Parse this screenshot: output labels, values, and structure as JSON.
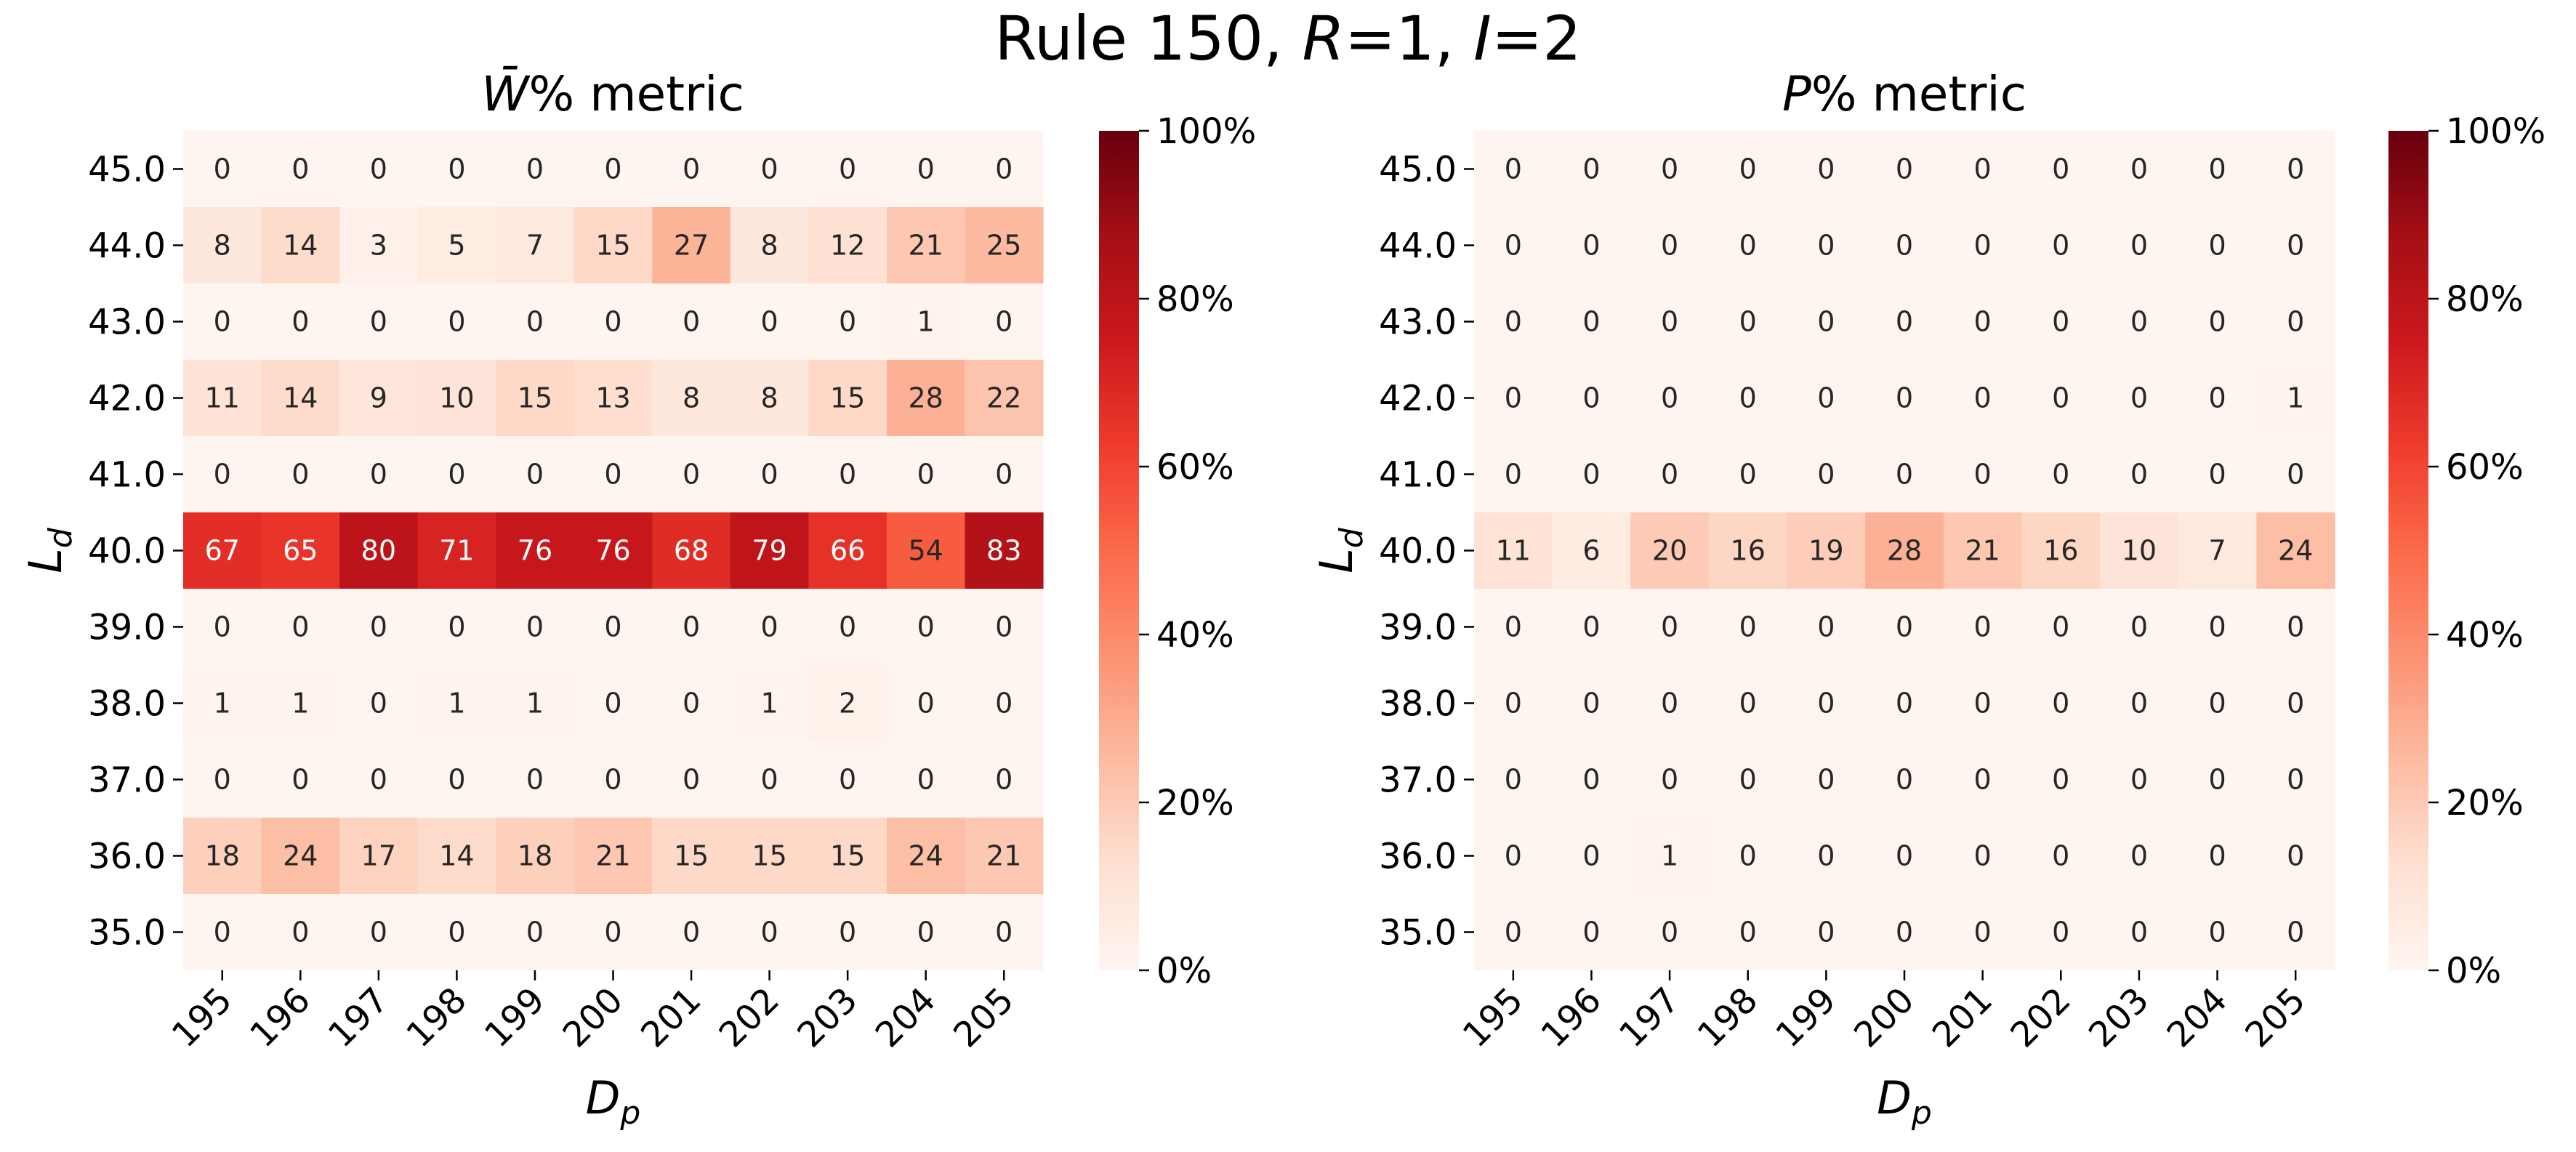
{
  "figure": {
    "title": {
      "prefix": "Rule 150, ",
      "r_symbol": "R",
      "r_value": "=1, ",
      "i_symbol": "I",
      "i_value": "=2"
    }
  },
  "chart_data": [
    {
      "type": "heatmap",
      "title": {
        "symbol": "W̄",
        "suffix": "% metric"
      },
      "xlabel": {
        "main": "D",
        "sub": "p"
      },
      "ylabel": {
        "main": "L",
        "sub": "d"
      },
      "x": [
        "195",
        "196",
        "197",
        "198",
        "199",
        "200",
        "201",
        "202",
        "203",
        "204",
        "205"
      ],
      "y": [
        "45.0",
        "44.0",
        "43.0",
        "42.0",
        "41.0",
        "40.0",
        "39.0",
        "38.0",
        "37.0",
        "36.0",
        "35.0"
      ],
      "values": [
        [
          0,
          0,
          0,
          0,
          0,
          0,
          0,
          0,
          0,
          0,
          0
        ],
        [
          8,
          14,
          3,
          5,
          7,
          15,
          27,
          8,
          12,
          21,
          25
        ],
        [
          0,
          0,
          0,
          0,
          0,
          0,
          0,
          0,
          0,
          1,
          0
        ],
        [
          11,
          14,
          9,
          10,
          15,
          13,
          8,
          8,
          15,
          28,
          22
        ],
        [
          0,
          0,
          0,
          0,
          0,
          0,
          0,
          0,
          0,
          0,
          0
        ],
        [
          67,
          65,
          80,
          71,
          76,
          76,
          68,
          79,
          66,
          54,
          83
        ],
        [
          0,
          0,
          0,
          0,
          0,
          0,
          0,
          0,
          0,
          0,
          0
        ],
        [
          1,
          1,
          0,
          1,
          1,
          0,
          0,
          1,
          2,
          0,
          0
        ],
        [
          0,
          0,
          0,
          0,
          0,
          0,
          0,
          0,
          0,
          0,
          0
        ],
        [
          18,
          24,
          17,
          14,
          18,
          21,
          15,
          15,
          15,
          24,
          21
        ],
        [
          0,
          0,
          0,
          0,
          0,
          0,
          0,
          0,
          0,
          0,
          0
        ]
      ],
      "vmin": 0,
      "vmax": 100,
      "colormap": "Reds",
      "colorbar_ticks": [
        "0%",
        "20%",
        "40%",
        "60%",
        "80%",
        "100%"
      ]
    },
    {
      "type": "heatmap",
      "title": {
        "symbol": "P",
        "suffix": "% metric"
      },
      "xlabel": {
        "main": "D",
        "sub": "p"
      },
      "ylabel": {
        "main": "L",
        "sub": "d"
      },
      "x": [
        "195",
        "196",
        "197",
        "198",
        "199",
        "200",
        "201",
        "202",
        "203",
        "204",
        "205"
      ],
      "y": [
        "45.0",
        "44.0",
        "43.0",
        "42.0",
        "41.0",
        "40.0",
        "39.0",
        "38.0",
        "37.0",
        "36.0",
        "35.0"
      ],
      "values": [
        [
          0,
          0,
          0,
          0,
          0,
          0,
          0,
          0,
          0,
          0,
          0
        ],
        [
          0,
          0,
          0,
          0,
          0,
          0,
          0,
          0,
          0,
          0,
          0
        ],
        [
          0,
          0,
          0,
          0,
          0,
          0,
          0,
          0,
          0,
          0,
          0
        ],
        [
          0,
          0,
          0,
          0,
          0,
          0,
          0,
          0,
          0,
          0,
          1
        ],
        [
          0,
          0,
          0,
          0,
          0,
          0,
          0,
          0,
          0,
          0,
          0
        ],
        [
          11,
          6,
          20,
          16,
          19,
          28,
          21,
          16,
          10,
          7,
          24
        ],
        [
          0,
          0,
          0,
          0,
          0,
          0,
          0,
          0,
          0,
          0,
          0
        ],
        [
          0,
          0,
          0,
          0,
          0,
          0,
          0,
          0,
          0,
          0,
          0
        ],
        [
          0,
          0,
          0,
          0,
          0,
          0,
          0,
          0,
          0,
          0,
          0
        ],
        [
          0,
          0,
          1,
          0,
          0,
          0,
          0,
          0,
          0,
          0,
          0
        ],
        [
          0,
          0,
          0,
          0,
          0,
          0,
          0,
          0,
          0,
          0,
          0
        ]
      ],
      "vmin": 0,
      "vmax": 100,
      "colormap": "Reds",
      "colorbar_ticks": [
        "0%",
        "20%",
        "40%",
        "60%",
        "80%",
        "100%"
      ]
    }
  ]
}
